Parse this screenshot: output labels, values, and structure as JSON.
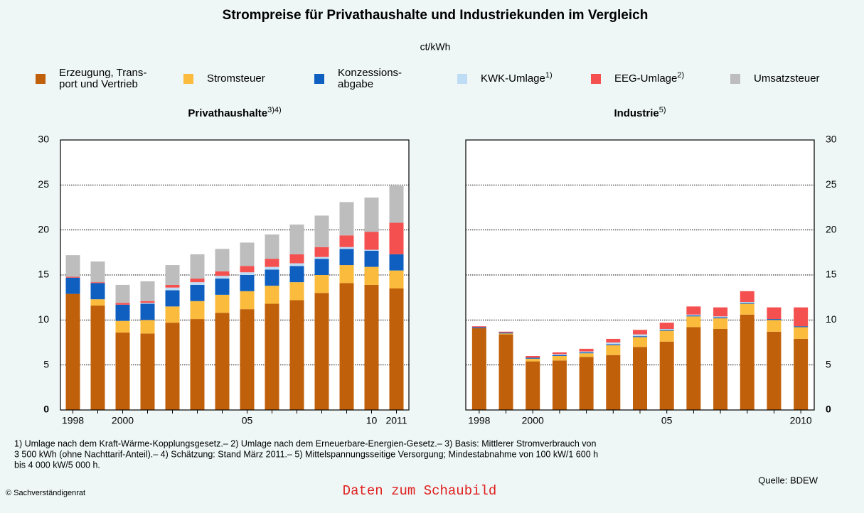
{
  "title": "Strompreise für Privathaushalte und Industriekunden im Vergleich",
  "unit": "ct/kWh",
  "footnotes": [
    "1) Umlage nach dem Kraft-Wärme-Kopplungsgesetz.– 2) Umlage nach dem Erneuerbare-Energien-Gesetz.– 3) Basis: Mittlerer Stromverbrauch von",
    "3 500 kWh (ohne Nachttarif-Anteil).– 4) Schätzung: Stand März 2011.– 5) Mittelspannungsseitige Versorgung; Mindestabnahme von 100 kW/1 600 h",
    "bis 4 000 kW/5 000 h."
  ],
  "source": "Quelle: BDEW",
  "copyright": "© Sachverständigenrat",
  "link": "Daten zum Schaubild",
  "chart_data": [
    {
      "type": "bar",
      "stacked": true,
      "title": "Privathaushalte",
      "title_sup": "3)4)",
      "categories": [
        "1998",
        null,
        "2000",
        null,
        null,
        null,
        null,
        "05",
        null,
        null,
        null,
        null,
        "10",
        "2011"
      ],
      "ylim": [
        0,
        30
      ],
      "yticks": [
        0,
        5,
        10,
        15,
        20,
        25,
        30
      ],
      "grid": true,
      "series": [
        {
          "name": "Erzeugung, Trans-\nport und Vertrieb",
          "color": "#c0600a",
          "values": [
            12.9,
            11.6,
            8.6,
            8.5,
            9.7,
            10.1,
            10.8,
            11.2,
            11.8,
            12.2,
            13.0,
            14.1,
            13.9,
            13.5
          ]
        },
        {
          "name": "Stromsteuer",
          "color": "#fbbb3c",
          "values": [
            0,
            0.7,
            1.3,
            1.5,
            1.8,
            2.0,
            2.0,
            2.0,
            2.0,
            2.0,
            2.0,
            2.0,
            2.0,
            2.0
          ]
        },
        {
          "name": "Konzessions-\nabgabe",
          "color": "#0e5fbf",
          "values": [
            1.8,
            1.8,
            1.8,
            1.8,
            1.8,
            1.8,
            1.8,
            1.8,
            1.8,
            1.8,
            1.8,
            1.8,
            1.8,
            1.8
          ]
        },
        {
          "name": "KWK-Umlage",
          "name_sup": "1)",
          "color": "#bfdcf5",
          "values": [
            0,
            0,
            0,
            0.1,
            0.3,
            0.3,
            0.3,
            0.3,
            0.3,
            0.3,
            0.2,
            0.2,
            0.1,
            0
          ]
        },
        {
          "name": "EEG-Umlage",
          "name_sup": "2)",
          "color": "#f4504f",
          "values": [
            0.1,
            0.1,
            0.2,
            0.2,
            0.3,
            0.4,
            0.5,
            0.7,
            0.9,
            1.0,
            1.1,
            1.3,
            2.0,
            3.5
          ]
        },
        {
          "name": "Umsatzsteuer",
          "color": "#bdbdbd",
          "values": [
            2.4,
            2.3,
            2.0,
            2.2,
            2.2,
            2.7,
            2.5,
            2.6,
            2.7,
            3.3,
            3.5,
            3.7,
            3.8,
            4.1
          ]
        }
      ]
    },
    {
      "type": "bar",
      "stacked": true,
      "title": "Industrie",
      "title_sup": "5)",
      "categories": [
        "1998",
        null,
        "2000",
        null,
        null,
        null,
        null,
        "05",
        null,
        null,
        null,
        null,
        "2010"
      ],
      "ylim": [
        0,
        30
      ],
      "yticks": [
        0,
        5,
        10,
        15,
        20,
        25,
        30
      ],
      "grid": true,
      "series": [
        {
          "values": [
            9.1,
            8.4,
            5.4,
            5.5,
            5.9,
            6.1,
            7.0,
            7.6,
            9.2,
            9.0,
            10.6,
            8.7,
            7.9
          ]
        },
        {
          "values": [
            0,
            0.1,
            0.3,
            0.5,
            0.4,
            1.1,
            1.1,
            1.2,
            1.2,
            1.2,
            1.2,
            1.3,
            1.3
          ]
        },
        {
          "values": [
            0.1,
            0.1,
            0.1,
            0.1,
            0.1,
            0.1,
            0.1,
            0.1,
            0.1,
            0.1,
            0.1,
            0.1,
            0.1
          ]
        },
        {
          "values": [
            0,
            0,
            0,
            0.1,
            0.1,
            0.2,
            0.2,
            0.1,
            0.1,
            0.1,
            0.1,
            0,
            0
          ]
        },
        {
          "values": [
            0.1,
            0.1,
            0.2,
            0.2,
            0.3,
            0.4,
            0.5,
            0.7,
            0.9,
            1.0,
            1.2,
            1.3,
            2.1
          ]
        }
      ]
    }
  ]
}
